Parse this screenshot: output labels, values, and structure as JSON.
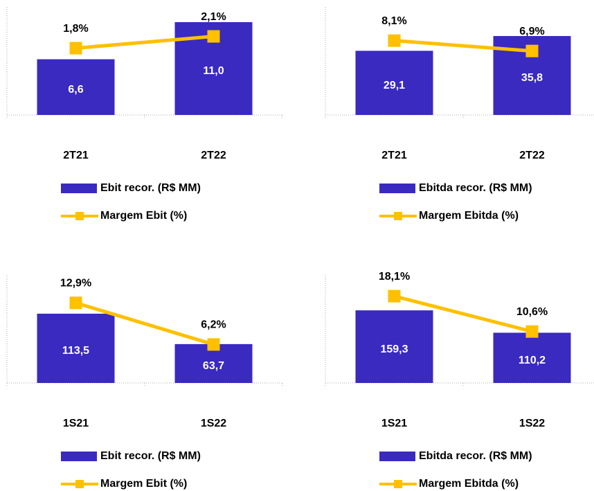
{
  "chart_data": [
    {
      "type": "bar",
      "categories": [
        "2T21",
        "2T22"
      ],
      "ylim": [
        0,
        12.8
      ],
      "y2lim": [
        0.1,
        2.85
      ],
      "series": [
        {
          "name": "Ebit recor. (R$ MM)",
          "color": "#3a2ac0",
          "values": [
            6.6,
            11.0
          ],
          "value_labels": [
            "6,6",
            "11,0"
          ]
        },
        {
          "name": "Margem Ebit (%)",
          "type": "line",
          "axis": "y2",
          "color": "#ffc000",
          "values": [
            1.8,
            2.1
          ],
          "value_labels": [
            "1,8%",
            "2,1%"
          ]
        }
      ]
    },
    {
      "type": "bar",
      "categories": [
        "2T21",
        "2T22"
      ],
      "ylim": [
        0,
        49
      ],
      "y2lim": [
        -0.5,
        12
      ],
      "series": [
        {
          "name": "Ebitda recor. (R$ MM)",
          "color": "#3a2ac0",
          "values": [
            29.1,
            35.8
          ],
          "value_labels": [
            "29,1",
            "35,8"
          ]
        },
        {
          "name": "Margem Ebitda (%)",
          "type": "line",
          "axis": "y2",
          "color": "#ffc000",
          "values": [
            8.1,
            6.9
          ],
          "value_labels": [
            "8,1%",
            "6,9%"
          ]
        }
      ]
    },
    {
      "type": "bar",
      "categories": [
        "1S21",
        "1S22"
      ],
      "ylim": [
        0,
        177
      ],
      "y2lim": [
        0,
        17.4
      ],
      "series": [
        {
          "name": "Ebit recor. (R$ MM)",
          "color": "#3a2ac0",
          "values": [
            113.5,
            63.7
          ],
          "value_labels": [
            "113,5",
            "63,7"
          ]
        },
        {
          "name": "Margem Ebit (%)",
          "type": "line",
          "axis": "y2",
          "color": "#ffc000",
          "values": [
            12.9,
            6.2
          ],
          "value_labels": [
            "12,9%",
            "6,2%"
          ]
        }
      ]
    },
    {
      "type": "bar",
      "categories": [
        "1S21",
        "1S22"
      ],
      "ylim": [
        0,
        237
      ],
      "y2lim": [
        -0.3,
        22.6
      ],
      "series": [
        {
          "name": "Ebitda recor. (R$ MM)",
          "color": "#3a2ac0",
          "values": [
            159.3,
            110.2
          ],
          "value_labels": [
            "159,3",
            "110,2"
          ]
        },
        {
          "name": "Margem Ebitda (%)",
          "type": "line",
          "axis": "y2",
          "color": "#ffc000",
          "values": [
            18.1,
            10.6
          ],
          "value_labels": [
            "18,1%",
            "10,6%"
          ]
        }
      ]
    }
  ]
}
